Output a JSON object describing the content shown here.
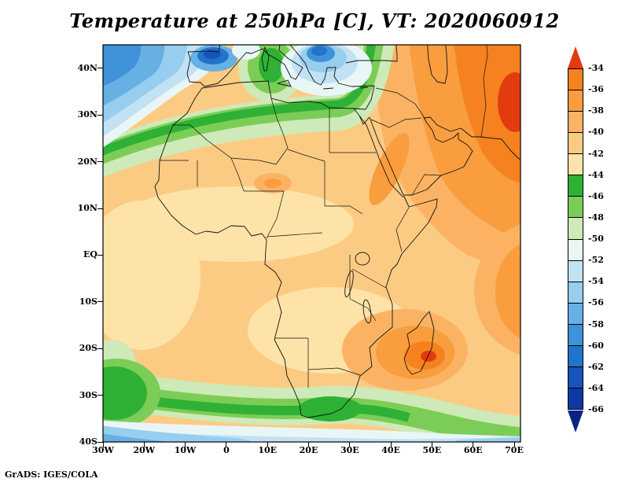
{
  "title": "Temperature at 250hPa [C], VT: 2020060912",
  "attribution": "GrADS: IGES/COLA",
  "axes": {
    "lat_labels": [
      "40N",
      "30N",
      "20N",
      "10N",
      "EQ",
      "10S",
      "20S",
      "30S",
      "40S"
    ],
    "lon_labels": [
      "30W",
      "20W",
      "10W",
      "0",
      "10E",
      "20E",
      "30E",
      "40E",
      "50E",
      "60E",
      "70E"
    ]
  },
  "colorbar": {
    "labels": [
      "-34",
      "-36",
      "-38",
      "-40",
      "-42",
      "-44",
      "-46",
      "-48",
      "-50",
      "-52",
      "-54",
      "-56",
      "-58",
      "-60",
      "-62",
      "-64",
      "-66"
    ],
    "band_colors": [
      "#f5821e",
      "#f99d3f",
      "#fbb363",
      "#fccb83",
      "#fde3a7",
      "#2eb135",
      "#7ccd57",
      "#cdeab8",
      "#e9f6f6",
      "#c2e2f4",
      "#97cdee",
      "#66b0e4",
      "#3f92d8",
      "#2473cb",
      "#1753ba",
      "#0f37a5"
    ],
    "arrow_top_color": "#e23b10",
    "arrow_bottom_color": "#082384"
  },
  "chart_data": {
    "type": "heatmap",
    "title": "Temperature at 250hPa [C], VT: 2020060912",
    "variable": "Temperature",
    "level": "250hPa",
    "units": "C",
    "valid_time": "2020060912",
    "x": {
      "label": "longitude",
      "ticks": [
        "30W",
        "20W",
        "10W",
        "0",
        "10E",
        "20E",
        "30E",
        "40E",
        "50E",
        "60E",
        "70E"
      ],
      "range_deg": [
        -30,
        71.5
      ]
    },
    "y": {
      "label": "latitude",
      "ticks": [
        "40N",
        "30N",
        "20N",
        "10N",
        "EQ",
        "10S",
        "20S",
        "30S",
        "40S"
      ],
      "range_deg": [
        -40,
        45
      ]
    },
    "colorbar": {
      "levels": [
        -34,
        -36,
        -38,
        -40,
        -42,
        -44,
        -46,
        -48,
        -50,
        -52,
        -54,
        -56,
        -58,
        -60,
        -62,
        -64,
        -66
      ],
      "band_colors": [
        "#f5821e",
        "#f99d3f",
        "#fbb363",
        "#fccb83",
        "#fde3a7",
        "#2eb135",
        "#7ccd57",
        "#cdeab8",
        "#e9f6f6",
        "#c2e2f4",
        "#97cdee",
        "#66b0e4",
        "#3f92d8",
        "#2473cb",
        "#1753ba",
        "#0f37a5"
      ],
      "above_color": "#e23b10",
      "below_color": "#082384"
    },
    "features": [
      {
        "region": "Sahara and tropical Africa (bulk of map)",
        "approx_value_C": "-40 to -44"
      },
      {
        "region": "Mediterranean coast of North Africa (green band ~30-36N)",
        "approx_value_C": "-44 to -48"
      },
      {
        "region": "Northeast Africa / Arabia / Middle East (top right)",
        "approx_value_C": "-34 to -40"
      },
      {
        "region": "Iberia / NE Atlantic (top left blue patches)",
        "approx_value_C": "-52 to -62"
      },
      {
        "region": "Mozambique Channel / Madagascar orange blob",
        "approx_value_C": "-34 to -40"
      },
      {
        "region": "Southern Africa green band ~28-35S",
        "approx_value_C": "-44 to -48"
      },
      {
        "region": "Southern Ocean along bottom edge",
        "approx_value_C": "-50 to -58"
      }
    ],
    "legend_position": "right",
    "grid": false
  }
}
